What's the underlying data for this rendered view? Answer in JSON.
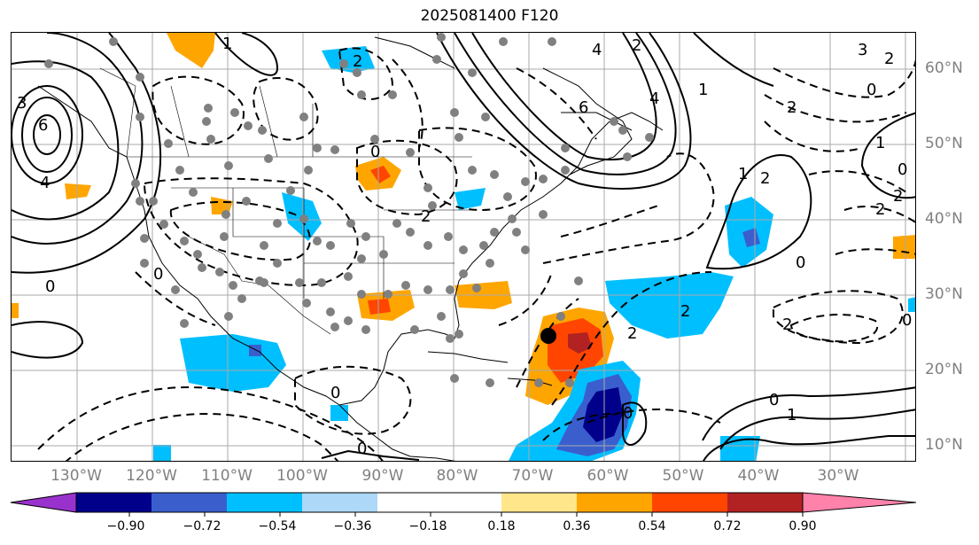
{
  "title": "2025081400 F120",
  "lon_labels": [
    "130°W",
    "120°W",
    "110°W",
    "100°W",
    "90°W",
    "80°W",
    "70°W",
    "60°W",
    "50°W",
    "40°W",
    "30°W"
  ],
  "lat_labels": [
    "60°N",
    "50°N",
    "40°N",
    "30°N",
    "20°N",
    "10°N"
  ],
  "colorbar": {
    "ticks": [
      "−0.90",
      "−0.72",
      "−0.54",
      "−0.36",
      "−0.18",
      "0.18",
      "0.36",
      "0.54",
      "0.72",
      "0.90"
    ],
    "colors": [
      "#9932CC",
      "#00008B",
      "#3A5FCD",
      "#00BFFF",
      "#ADD8F7",
      "#FFFFFF",
      "#FFE68A",
      "#FFA500",
      "#FF4500",
      "#B22222",
      "#FF82AB"
    ]
  },
  "contour_labels": [
    "1",
    "2",
    "3",
    "4",
    "6",
    "0",
    "4",
    "2",
    "0",
    "0",
    "6",
    "4",
    "1",
    "2",
    "3",
    "0",
    "2",
    "1",
    "1",
    "2",
    "0",
    "2",
    "2",
    "0",
    "2",
    "0",
    "2",
    "2",
    "0",
    "1",
    "0",
    "0",
    "0",
    "2"
  ],
  "marker": {
    "lon": "70°W",
    "lat": "25°N"
  }
}
